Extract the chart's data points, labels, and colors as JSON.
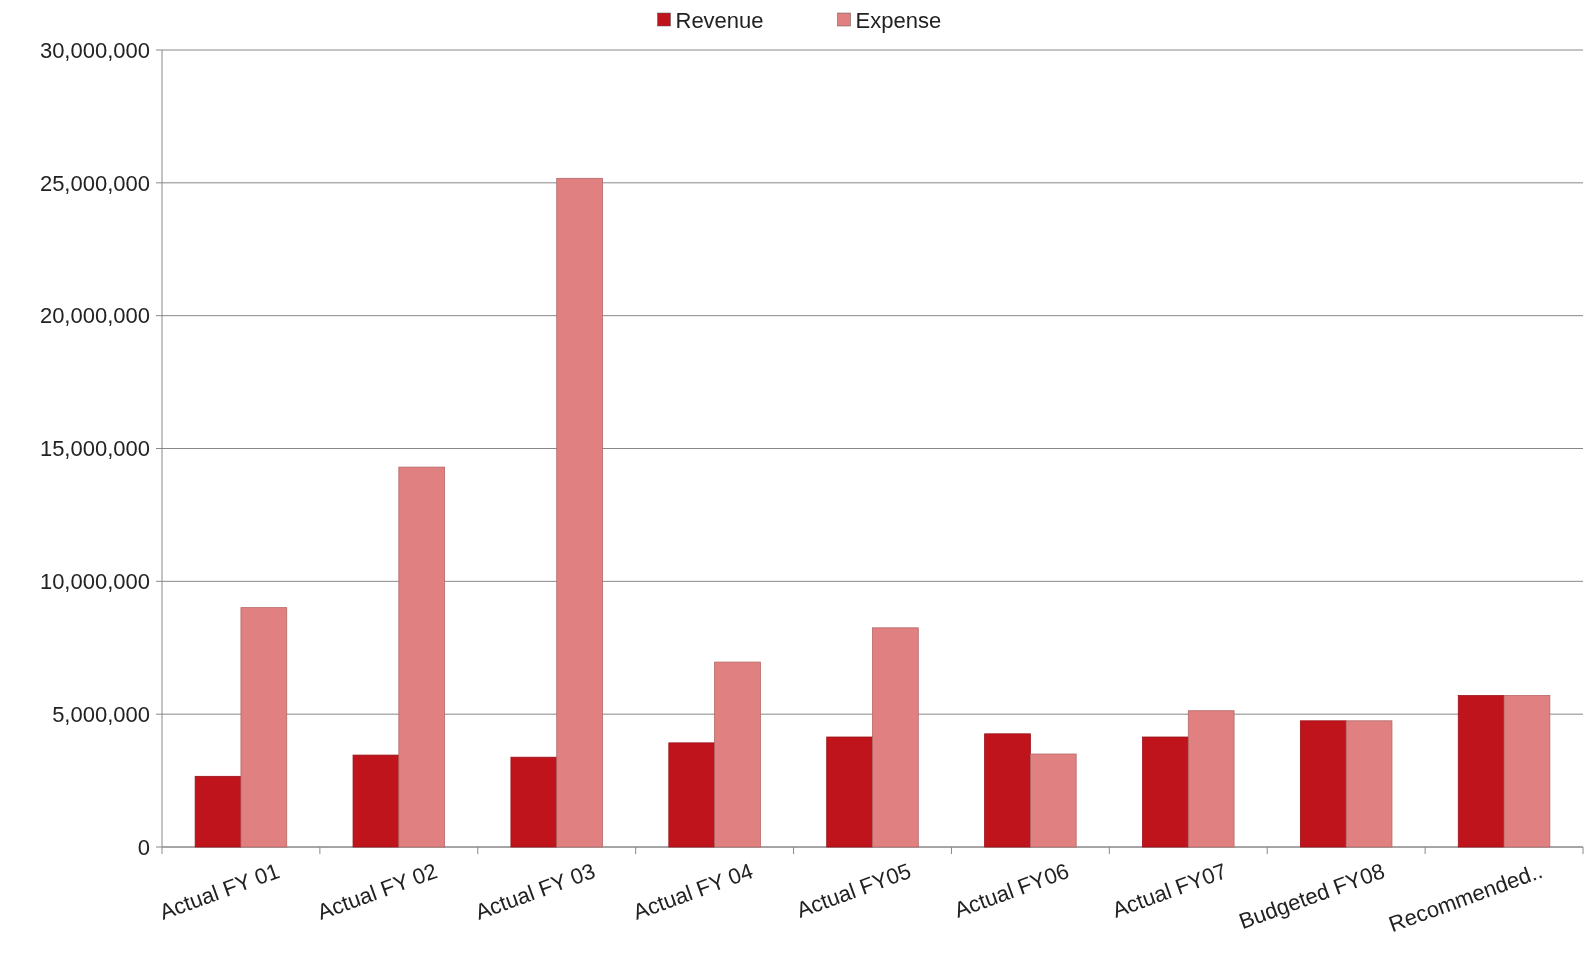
{
  "chart_data": {
    "type": "bar",
    "categories": [
      "Actual FY 01",
      "Actual FY 02",
      "Actual FY 03",
      "Actual FY 04",
      "Actual FY05",
      "Actual FY06",
      "Actual FY07",
      "Budgeted FY08",
      "Recommended.."
    ],
    "series": [
      {
        "name": "Revenue",
        "color": "#c0141c",
        "values": [
          2660000,
          3460000,
          3380000,
          3920000,
          4140000,
          4260000,
          4140000,
          4750000,
          5700000
        ]
      },
      {
        "name": "Expense",
        "color": "#e08080",
        "values": [
          9010000,
          14300000,
          25170000,
          6960000,
          8250000,
          3500000,
          5130000,
          4750000,
          5700000
        ]
      }
    ],
    "ylim": [
      0,
      30000000
    ],
    "yticks": [
      {
        "value": 0,
        "label": "0"
      },
      {
        "value": 5000000,
        "label": "5,000,000"
      },
      {
        "value": 10000000,
        "label": "10,000,000"
      },
      {
        "value": 15000000,
        "label": "15,000,000"
      },
      {
        "value": 20000000,
        "label": "20,000,000"
      },
      {
        "value": 25000000,
        "label": "25,000,000"
      },
      {
        "value": 30000000,
        "label": "30,000,000"
      }
    ],
    "grid": "y",
    "legend": "top"
  }
}
